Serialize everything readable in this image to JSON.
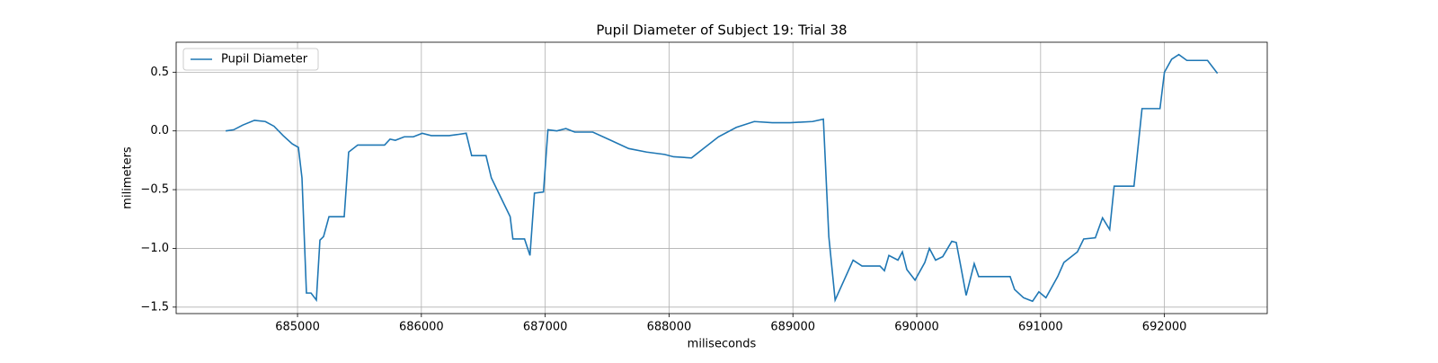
{
  "chart_data": {
    "type": "line",
    "title": "Pupil Diameter of Subject 19: Trial 38",
    "x_label": "miliseconds",
    "y_label": "milimeters",
    "x": [
      684420,
      684485,
      684558,
      684652,
      684740,
      684810,
      684884,
      684957,
      685007,
      685036,
      685072,
      685109,
      685152,
      685181,
      685210,
      685254,
      685377,
      685413,
      685486,
      685703,
      685747,
      685790,
      685862,
      685935,
      686007,
      686080,
      686225,
      686297,
      686362,
      686406,
      686522,
      686565,
      686717,
      686739,
      686833,
      686877,
      686913,
      686986,
      687022,
      687094,
      687167,
      687239,
      687384,
      687529,
      687674,
      687819,
      687964,
      688036,
      688181,
      688254,
      688399,
      688543,
      688688,
      688833,
      688978,
      689159,
      689246,
      689290,
      689341,
      689486,
      689558,
      689703,
      689739,
      689775,
      689848,
      689884,
      689920,
      689986,
      690065,
      690102,
      690152,
      690210,
      690283,
      690319,
      690355,
      690399,
      690464,
      690500,
      690754,
      690790,
      690862,
      690935,
      690986,
      691043,
      691138,
      691188,
      691297,
      691348,
      691442,
      691500,
      691558,
      691594,
      691754,
      691819,
      691964,
      692000,
      692058,
      692116,
      692181,
      692348,
      692428
    ],
    "series": [
      {
        "name": "Pupil Diameter",
        "color": "#1f77b4",
        "values": [
          0.0,
          0.01,
          0.05,
          0.09,
          0.08,
          0.04,
          -0.04,
          -0.11,
          -0.14,
          -0.4,
          -1.38,
          -1.38,
          -1.44,
          -0.93,
          -0.9,
          -0.73,
          -0.73,
          -0.18,
          -0.12,
          -0.12,
          -0.07,
          -0.08,
          -0.05,
          -0.05,
          -0.02,
          -0.04,
          -0.04,
          -0.03,
          -0.02,
          -0.21,
          -0.21,
          -0.4,
          -0.73,
          -0.92,
          -0.92,
          -1.06,
          -0.53,
          -0.52,
          0.01,
          0.0,
          0.02,
          -0.01,
          -0.01,
          -0.08,
          -0.15,
          -0.18,
          -0.2,
          -0.22,
          -0.23,
          -0.17,
          -0.05,
          0.03,
          0.08,
          0.07,
          0.07,
          0.08,
          0.1,
          -0.9,
          -1.44,
          -1.1,
          -1.15,
          -1.15,
          -1.19,
          -1.06,
          -1.1,
          -1.03,
          -1.18,
          -1.27,
          -1.12,
          -1.0,
          -1.1,
          -1.07,
          -0.94,
          -0.95,
          -1.15,
          -1.4,
          -1.13,
          -1.24,
          -1.24,
          -1.35,
          -1.42,
          -1.45,
          -1.37,
          -1.42,
          -1.24,
          -1.12,
          -1.03,
          -0.92,
          -0.91,
          -0.74,
          -0.84,
          -0.47,
          -0.47,
          0.19,
          0.19,
          0.5,
          0.61,
          0.65,
          0.6,
          0.6,
          0.49
        ]
      }
    ],
    "xlim": [
      684020,
      692830
    ],
    "ylim": [
      -1.555,
      0.755
    ],
    "xticks": [
      685000,
      686000,
      687000,
      688000,
      689000,
      690000,
      691000,
      692000
    ],
    "yticks": [
      0.5,
      {
        "value": 0.0,
        "label": "0.0"
      },
      {
        "value": -0.5,
        "label": "−0.5"
      },
      {
        "value": -1.0,
        "label": "−1.0"
      },
      {
        "value": -1.5,
        "label": "−1.5"
      }
    ],
    "grid": true,
    "legend": "upper left"
  }
}
